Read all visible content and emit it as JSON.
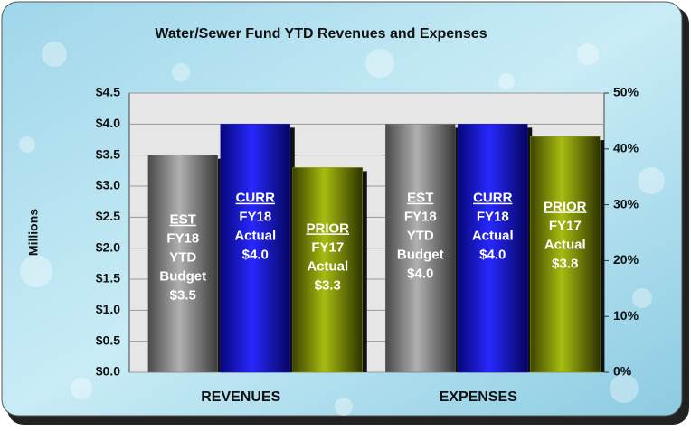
{
  "chart_data": {
    "type": "bar",
    "title": "Water/Sewer Fund YTD Revenues and Expenses",
    "y_label": "Millions",
    "categories": [
      "REVENUES",
      "EXPENSES"
    ],
    "series": [
      {
        "name": "EST",
        "details": [
          "FY18",
          "YTD",
          "Budget"
        ],
        "color": "#7a7a7a",
        "values": [
          3.5,
          4.0
        ],
        "value_labels": [
          "$3.5",
          "$4.0"
        ]
      },
      {
        "name": "CURR",
        "details": [
          "FY18",
          "Actual"
        ],
        "color": "#1414d8",
        "values": [
          4.0,
          4.0
        ],
        "value_labels": [
          "$4.0",
          "$4.0"
        ]
      },
      {
        "name": "PRIOR",
        "details": [
          "FY17",
          "Actual"
        ],
        "color": "#8c9c00",
        "values": [
          3.3,
          3.8
        ],
        "value_labels": [
          "$3.3",
          "$3.8"
        ]
      }
    ],
    "ylim": [
      0,
      4.5
    ],
    "yticks": [
      {
        "value": 0,
        "label": "$0.0"
      },
      {
        "value": 0.5,
        "label": "$0.5"
      },
      {
        "value": 1,
        "label": "$1.0"
      },
      {
        "value": 1.5,
        "label": "$1.5"
      },
      {
        "value": 2,
        "label": "$2.0"
      },
      {
        "value": 2.5,
        "label": "$2.5"
      },
      {
        "value": 3,
        "label": "$3.0"
      },
      {
        "value": 3.5,
        "label": "$3.5"
      },
      {
        "value": 4,
        "label": "$4.0"
      },
      {
        "value": 4.5,
        "label": "$4.5"
      }
    ],
    "y2lim": [
      0,
      50
    ],
    "y2ticks": [
      {
        "value": 0,
        "label": "0%"
      },
      {
        "value": 10,
        "label": "10%"
      },
      {
        "value": 20,
        "label": "20%"
      },
      {
        "value": 30,
        "label": "30%"
      },
      {
        "value": 40,
        "label": "40%"
      },
      {
        "value": 50,
        "label": "50%"
      }
    ],
    "grid": true
  }
}
